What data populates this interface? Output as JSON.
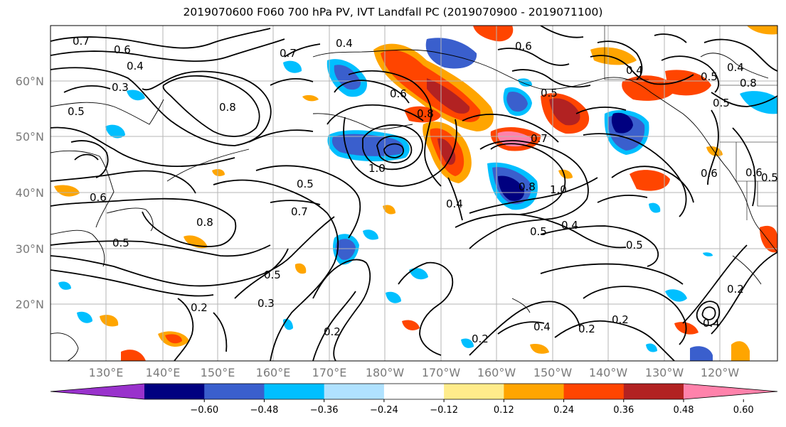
{
  "title": "2019070600 F060 700 hPa PV, IVT Landfall PC (2019070900 - 2019071100)",
  "lat_labels": [
    "60°N",
    "50°N",
    "40°N",
    "30°N",
    "20°N"
  ],
  "lon_labels": [
    "130°E",
    "140°E",
    "150°E",
    "160°E",
    "170°E",
    "180°W",
    "170°W",
    "160°W",
    "150°W",
    "140°W",
    "130°W",
    "120°W"
  ],
  "colorbar": {
    "colors": [
      "#9932cc",
      "#000080",
      "#3a5fcd",
      "#00bfff",
      "#b0e2ff",
      "#ffffff",
      "#ffec8b",
      "#ffa500",
      "#ff4500",
      "#b22222",
      "#ff82ab"
    ],
    "tick_labels": [
      "−0.60",
      "−0.48",
      "−0.36",
      "−0.24",
      "−0.12",
      "0.12",
      "0.24",
      "0.36",
      "0.48",
      "0.60"
    ]
  },
  "contour_labels": [
    "0.7",
    "0.6",
    "0.4",
    "0.3",
    "0.5",
    "0.8",
    "0.7",
    "0.6",
    "0.6",
    "0.8",
    "0.5",
    "0.7",
    "1.0",
    "0.4",
    "0.5",
    "0.7",
    "0.8",
    "0.5",
    "0.6",
    "0.8",
    "0.5",
    "0.4",
    "1.0",
    "0.5",
    "0.4",
    "0.5",
    "0.6",
    "0.5",
    "0.3",
    "0.2",
    "0.2",
    "0.2",
    "0.4",
    "0.2",
    "0.2",
    "0.2",
    "0.4",
    "0.6",
    "0.4",
    "0.8",
    "0.5",
    "0.4",
    "0.5"
  ]
}
